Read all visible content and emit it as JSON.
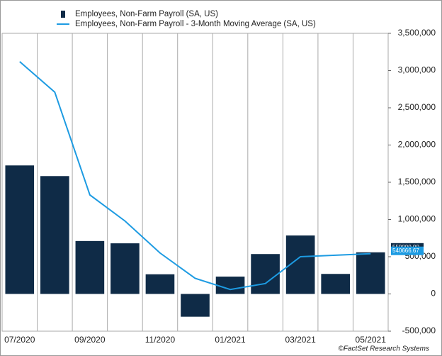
{
  "chart_data": {
    "type": "bar_line",
    "categories": [
      "07/2020",
      null,
      "09/2020",
      null,
      "11/2020",
      null,
      "01/2021",
      null,
      "03/2021",
      null,
      "05/2021"
    ],
    "series": [
      {
        "name": "Employees, Non-Farm Payroll  (SA, US)",
        "type": "bar",
        "color": "#0f2b47",
        "values": [
          1726000,
          1583000,
          711000,
          680000,
          264000,
          -306000,
          233000,
          536000,
          785000,
          269000,
          559000
        ],
        "value_labels": [
          null,
          null,
          null,
          null,
          null,
          null,
          null,
          null,
          null,
          null,
          "559000.00"
        ]
      },
      {
        "name": "Employees, Non-Farm Payroll - 3-Month Moving Average (SA, US)",
        "type": "line",
        "color": "#1d9be2",
        "values": [
          3120000,
          2710000,
          1330000,
          980000,
          550000,
          210000,
          60000,
          140000,
          500000,
          520000,
          540666.67
        ],
        "value_labels": [
          null,
          null,
          null,
          null,
          null,
          null,
          null,
          null,
          null,
          null,
          "540666.67"
        ]
      }
    ],
    "ylim": [
      -500000,
      3500000
    ],
    "yticks": [
      {
        "value": -500000,
        "label": "-500,000"
      },
      0,
      {
        "value": 500000,
        "label": "500,000"
      },
      {
        "value": 1000000,
        "label": "1,000,000"
      },
      {
        "value": 1500000,
        "label": "1,500,000"
      },
      {
        "value": 2000000,
        "label": "2,000,000"
      },
      {
        "value": 2500000,
        "label": "2,500,000"
      },
      {
        "value": 3000000,
        "label": "3,000,000"
      },
      {
        "value": 3500000,
        "label": "3,500,000"
      }
    ],
    "source": "©FactSet Research Systems"
  }
}
